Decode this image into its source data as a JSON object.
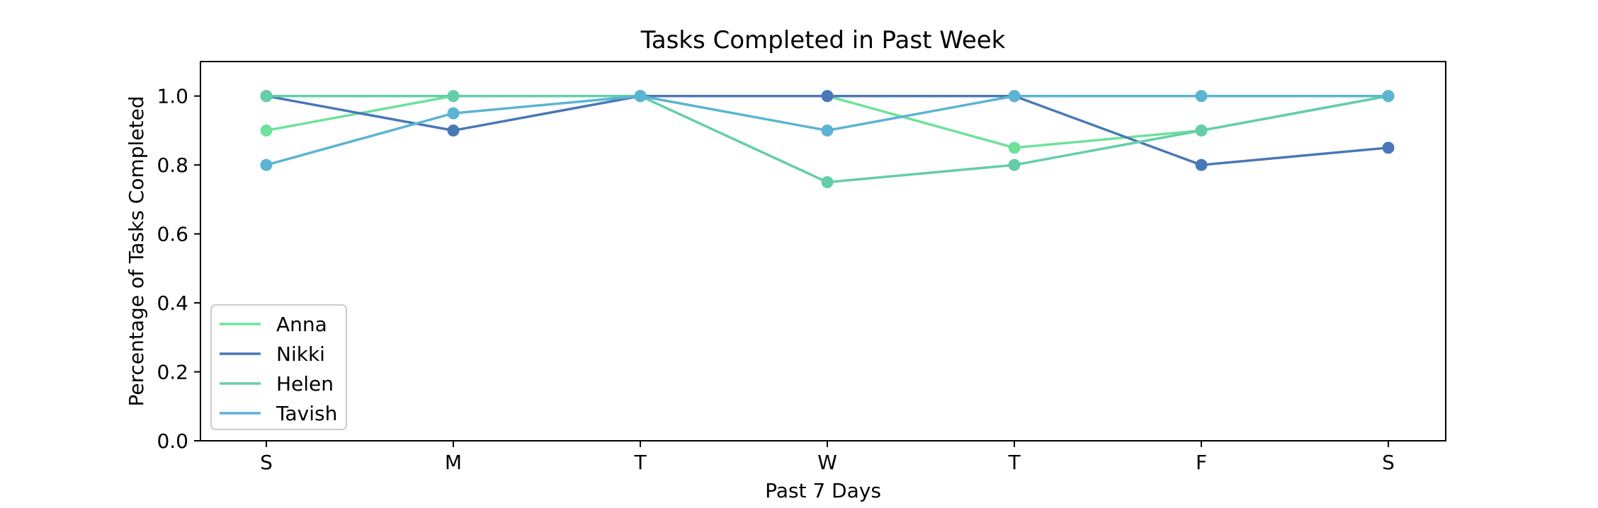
{
  "chart_data": {
    "type": "line",
    "title": "Tasks Completed in Past Week",
    "xlabel": "Past 7 Days",
    "ylabel": "Percentage of Tasks Completed",
    "categories": [
      "S",
      "M",
      "T",
      "W",
      "T",
      "F",
      "S"
    ],
    "ylim": [
      0.0,
      1.1
    ],
    "yticks": [
      0.0,
      0.2,
      0.4,
      0.6,
      0.8,
      1.0
    ],
    "ytick_labels": [
      "0.0",
      "0.2",
      "0.4",
      "0.6",
      "0.8",
      "1.0"
    ],
    "grid": false,
    "legend": "lower-left",
    "series": [
      {
        "name": "Anna",
        "color": "#6ee19b",
        "values": [
          0.9,
          1.0,
          1.0,
          1.0,
          0.85,
          0.9,
          1.0
        ]
      },
      {
        "name": "Nikki",
        "color": "#4878b8",
        "values": [
          1.0,
          0.9,
          1.0,
          1.0,
          1.0,
          0.8,
          0.85
        ]
      },
      {
        "name": "Helen",
        "color": "#66cdaa",
        "values": [
          1.0,
          1.0,
          1.0,
          0.75,
          0.8,
          0.9,
          1.0
        ]
      },
      {
        "name": "Tavish",
        "color": "#5ab4d2",
        "values": [
          0.8,
          0.95,
          1.0,
          0.9,
          1.0,
          1.0,
          1.0
        ]
      }
    ]
  }
}
